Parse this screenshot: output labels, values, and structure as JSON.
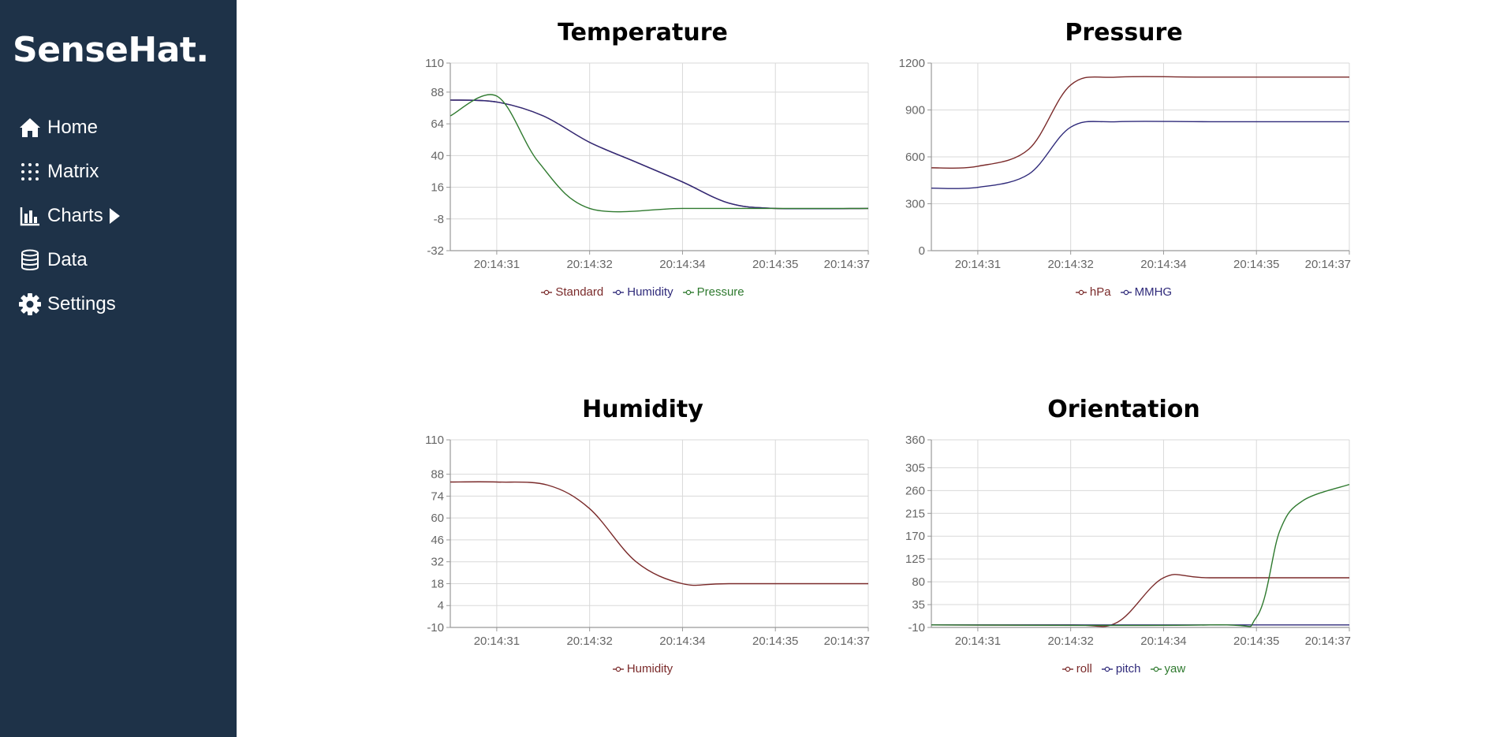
{
  "sidebar": {
    "brand": "SenseHat.",
    "items": [
      {
        "label": "Home",
        "icon": "home-icon"
      },
      {
        "label": "Matrix",
        "icon": "dots-grid-icon"
      },
      {
        "label": "Charts",
        "icon": "bar-chart-icon",
        "caret": "caret-right-icon"
      },
      {
        "label": "Data",
        "icon": "database-icon"
      },
      {
        "label": "Settings",
        "icon": "gear-icon"
      }
    ]
  },
  "colors": {
    "sidebar_bg": "#1e3248",
    "series_red": "#7a2a2a",
    "series_blue": "#2f2a7a",
    "series_green": "#2f7a2f",
    "grid": "#d9d9d9",
    "axis": "#999999",
    "tick_text": "#666666"
  },
  "chart_data": [
    {
      "type": "line",
      "title": "Temperature",
      "x": [
        "20:14:31",
        "20:14:32",
        "20:14:34",
        "20:14:35",
        "20:14:37"
      ],
      "x_index": [
        0.5,
        1.5,
        2.5,
        3.5,
        4.5
      ],
      "x_range": [
        0,
        4.5
      ],
      "ylim": [
        -32,
        110
      ],
      "yticks": [
        -32,
        -8,
        16,
        40,
        64,
        88,
        110
      ],
      "grid": true,
      "legend": "bottom",
      "series": [
        {
          "name": "Standard",
          "color": "#7a2a2a",
          "points": [
            [
              0,
              82
            ],
            [
              0.5,
              80.5
            ],
            [
              1.0,
              70
            ],
            [
              1.5,
              50
            ],
            [
              2.0,
              35
            ],
            [
              2.5,
              20
            ],
            [
              3.0,
              4
            ],
            [
              3.5,
              0
            ],
            [
              4.5,
              0
            ]
          ]
        },
        {
          "name": "Humidity",
          "color": "#2f2a7a",
          "points": [
            [
              0,
              82
            ],
            [
              0.5,
              80.5
            ],
            [
              1.0,
              70
            ],
            [
              1.5,
              50
            ],
            [
              2.0,
              35
            ],
            [
              2.5,
              20
            ],
            [
              3.0,
              4
            ],
            [
              3.5,
              0
            ],
            [
              4.5,
              0
            ]
          ]
        },
        {
          "name": "Pressure",
          "color": "#2f7a2f",
          "points": [
            [
              0,
              70
            ],
            [
              0.5,
              85
            ],
            [
              0.95,
              35
            ],
            [
              1.5,
              0
            ],
            [
              2.5,
              0
            ],
            [
              3.5,
              0
            ],
            [
              4.5,
              0
            ]
          ]
        }
      ]
    },
    {
      "type": "line",
      "title": "Pressure",
      "x": [
        "20:14:31",
        "20:14:32",
        "20:14:34",
        "20:14:35",
        "20:14:37"
      ],
      "x_index": [
        0.5,
        1.5,
        2.5,
        3.5,
        4.5
      ],
      "x_range": [
        0,
        4.5
      ],
      "ylim": [
        0,
        1200
      ],
      "yticks": [
        0,
        300,
        600,
        900,
        1200
      ],
      "grid": true,
      "legend": "bottom",
      "series": [
        {
          "name": "hPa",
          "color": "#7a2a2a",
          "points": [
            [
              0,
              530
            ],
            [
              0.5,
              540
            ],
            [
              1.05,
              650
            ],
            [
              1.5,
              1060
            ],
            [
              2.0,
              1110
            ],
            [
              3.0,
              1110
            ],
            [
              4.5,
              1110
            ]
          ]
        },
        {
          "name": "MMHG",
          "color": "#2f2a7a",
          "points": [
            [
              0,
              400
            ],
            [
              0.5,
              405
            ],
            [
              1.05,
              490
            ],
            [
              1.5,
              790
            ],
            [
              2.0,
              825
            ],
            [
              3.0,
              825
            ],
            [
              4.5,
              825
            ]
          ]
        }
      ]
    },
    {
      "type": "line",
      "title": "Humidity",
      "x": [
        "20:14:31",
        "20:14:32",
        "20:14:34",
        "20:14:35",
        "20:14:37"
      ],
      "x_index": [
        0.5,
        1.5,
        2.5,
        3.5,
        4.5
      ],
      "x_range": [
        0,
        4.5
      ],
      "ylim": [
        -10,
        110
      ],
      "yticks": [
        -10,
        4,
        18,
        32,
        46,
        60,
        74,
        88,
        110
      ],
      "grid": true,
      "legend": "bottom",
      "series": [
        {
          "name": "Humidity",
          "color": "#7a2a2a",
          "points": [
            [
              0,
              83
            ],
            [
              0.5,
              83
            ],
            [
              1.05,
              81
            ],
            [
              1.5,
              66
            ],
            [
              2.0,
              32
            ],
            [
              2.5,
              18
            ],
            [
              3.0,
              18
            ],
            [
              4.5,
              18
            ]
          ]
        }
      ]
    },
    {
      "type": "line",
      "title": "Orientation",
      "x": [
        "20:14:31",
        "20:14:32",
        "20:14:34",
        "20:14:35",
        "20:14:37"
      ],
      "x_index": [
        0.5,
        1.5,
        2.5,
        3.5,
        4.5
      ],
      "x_range": [
        0,
        4.5
      ],
      "ylim": [
        -10,
        360
      ],
      "yticks": [
        -10,
        35,
        80,
        125,
        170,
        215,
        260,
        305,
        360
      ],
      "grid": true,
      "legend": "bottom",
      "series": [
        {
          "name": "roll",
          "color": "#7a2a2a",
          "points": [
            [
              0,
              -5
            ],
            [
              1.5,
              -5
            ],
            [
              2.0,
              0
            ],
            [
              2.5,
              88
            ],
            [
              3.0,
              88
            ],
            [
              4.5,
              88
            ]
          ]
        },
        {
          "name": "pitch",
          "color": "#2f2a7a",
          "points": [
            [
              0,
              -5
            ],
            [
              4.5,
              -5
            ]
          ]
        },
        {
          "name": "yaw",
          "color": "#2f7a2f",
          "points": [
            [
              0,
              -5
            ],
            [
              3.0,
              -5
            ],
            [
              3.5,
              10
            ],
            [
              3.75,
              180
            ],
            [
              4.0,
              240
            ],
            [
              4.5,
              272
            ]
          ]
        }
      ]
    }
  ]
}
